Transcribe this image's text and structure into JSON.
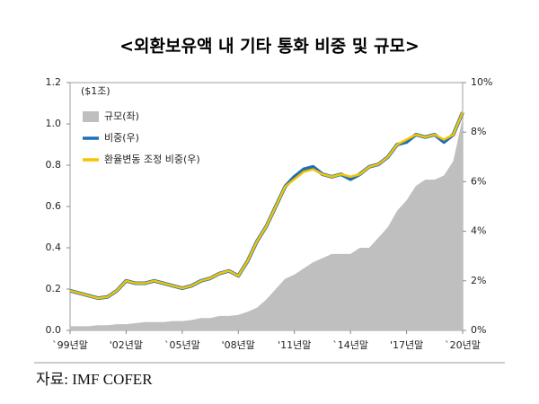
{
  "chart_data": {
    "type": "line",
    "title": "<외환보유액 내 기타 통화 비중 및 규모>",
    "y_unit": "($1조)",
    "source": "자료: IMF COFER",
    "categories": [
      "`99년말",
      null,
      null,
      null,
      null,
      null,
      "'02년말",
      null,
      null,
      null,
      null,
      null,
      "`05년말",
      null,
      null,
      null,
      null,
      null,
      "'08년말",
      null,
      null,
      null,
      null,
      null,
      "'11년말",
      null,
      null,
      null,
      null,
      null,
      "`14년말",
      null,
      null,
      null,
      null,
      null,
      "'17년말",
      null,
      null,
      null,
      null,
      null,
      "`20년말"
    ],
    "ylim": [
      0,
      1.2
    ],
    "yticks": [
      {
        "value": 0,
        "label": "0.0"
      },
      0.2,
      0.4,
      0.6,
      0.8,
      {
        "value": 1,
        "label": "1.0"
      },
      1.2
    ],
    "y2lim": [
      0,
      10
    ],
    "y2ticks": [
      {
        "value": 0,
        "label": "0%"
      },
      {
        "value": 2,
        "label": "2%"
      },
      {
        "value": 4,
        "label": "4%"
      },
      {
        "value": 6,
        "label": "6%"
      },
      {
        "value": 8,
        "label": "8%"
      },
      {
        "value": 10,
        "label": "10%"
      }
    ],
    "legend": "upper left",
    "series": [
      {
        "name": "규모(좌)",
        "type": "area",
        "color": "#bfbfbf",
        "axis": "y",
        "values": [
          0.02,
          0.02,
          0.02,
          0.025,
          0.025,
          0.03,
          0.03,
          0.035,
          0.04,
          0.04,
          0.04,
          0.045,
          0.045,
          0.05,
          0.06,
          0.06,
          0.07,
          0.07,
          0.075,
          0.09,
          0.11,
          0.15,
          0.2,
          0.25,
          0.27,
          0.3,
          0.33,
          0.35,
          0.37,
          0.37,
          0.37,
          0.4,
          0.4,
          0.45,
          0.5,
          0.58,
          0.63,
          0.7,
          0.73,
          0.73,
          0.75,
          0.82,
          1.03
        ]
      },
      {
        "name": "비중(우)",
        "type": "line",
        "color": "#1f6fb5",
        "axis": "y2",
        "values": [
          1.6,
          1.5,
          1.4,
          1.3,
          1.35,
          1.6,
          2.0,
          1.9,
          1.9,
          2.0,
          1.9,
          1.8,
          1.7,
          1.8,
          2.0,
          2.1,
          2.3,
          2.4,
          2.2,
          2.8,
          3.6,
          4.2,
          5.0,
          5.8,
          6.2,
          6.5,
          6.6,
          6.3,
          6.2,
          6.3,
          6.1,
          6.3,
          6.6,
          6.7,
          7.0,
          7.5,
          7.6,
          7.9,
          7.8,
          7.9,
          7.6,
          7.9,
          8.8
        ]
      },
      {
        "name": "환율변동 조정 비중(우)",
        "type": "line",
        "color": "#f5c400",
        "axis": "y2",
        "values": [
          1.6,
          1.5,
          1.4,
          1.3,
          1.35,
          1.6,
          2.0,
          1.9,
          1.9,
          2.0,
          1.9,
          1.8,
          1.7,
          1.8,
          2.0,
          2.1,
          2.3,
          2.4,
          2.2,
          2.8,
          3.6,
          4.2,
          5.0,
          5.8,
          6.1,
          6.4,
          6.5,
          6.3,
          6.2,
          6.3,
          6.2,
          6.3,
          6.6,
          6.7,
          7.0,
          7.5,
          7.7,
          7.9,
          7.8,
          7.9,
          7.7,
          7.9,
          8.8
        ]
      }
    ]
  }
}
